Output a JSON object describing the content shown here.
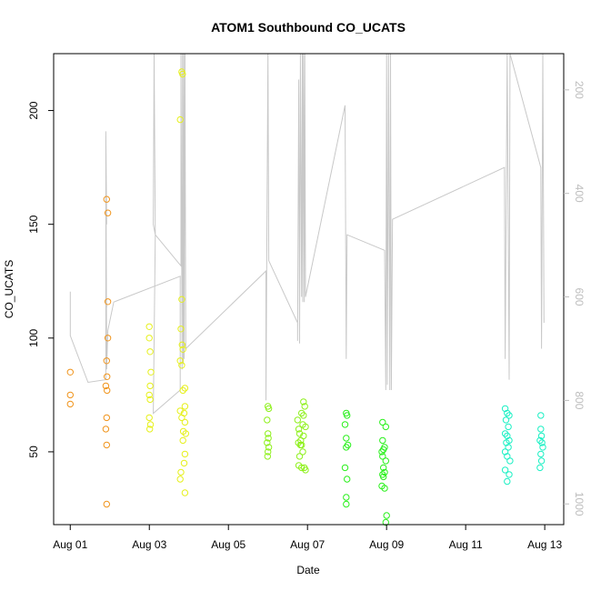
{
  "chart_data": {
    "type": "scatter",
    "title": "ATOM1 Southbound CO_UCATS",
    "xlabel": "Date",
    "ylabel": "CO_UCATS",
    "x_unit": "days since Aug 01",
    "x_ticks": [
      {
        "label": "Aug 01",
        "value": 0
      },
      {
        "label": "Aug 03",
        "value": 2
      },
      {
        "label": "Aug 05",
        "value": 4
      },
      {
        "label": "Aug 07",
        "value": 6
      },
      {
        "label": "Aug 09",
        "value": 8
      },
      {
        "label": "Aug 11",
        "value": 10
      },
      {
        "label": "Aug 13",
        "value": 12
      }
    ],
    "xlim": [
      -0.42,
      12.48
    ],
    "ylim": [
      18,
      225
    ],
    "y_ticks": [
      50,
      100,
      150,
      200
    ],
    "y2_ticks": [
      200,
      400,
      600,
      800,
      1000
    ],
    "y2lim": [
      1040,
      130
    ],
    "y2_reversed": true,
    "y2_color": "#bdbdbd",
    "grid": false,
    "legend": "none",
    "point_style": "open-circle",
    "series": [
      {
        "color": "#f0941c",
        "points": [
          [
            0.0,
            85
          ],
          [
            0.0,
            75
          ],
          [
            0.0,
            71
          ],
          [
            0.92,
            161
          ],
          [
            0.95,
            155
          ],
          [
            0.95,
            116
          ],
          [
            0.95,
            100
          ],
          [
            0.92,
            90
          ],
          [
            0.9,
            79
          ],
          [
            0.93,
            77
          ],
          [
            0.93,
            83
          ],
          [
            0.92,
            65
          ],
          [
            0.9,
            60
          ],
          [
            0.92,
            53
          ],
          [
            0.92,
            27
          ]
        ]
      },
      {
        "color": "#e6f01c",
        "points": [
          [
            2.0,
            105
          ],
          [
            2.0,
            100
          ],
          [
            2.02,
            94
          ],
          [
            2.04,
            85
          ],
          [
            2.02,
            79
          ],
          [
            2.0,
            75
          ],
          [
            2.02,
            73
          ],
          [
            2.0,
            65
          ],
          [
            2.03,
            62
          ],
          [
            2.01,
            60
          ],
          [
            2.78,
            196
          ],
          [
            2.82,
            217
          ],
          [
            2.84,
            216
          ],
          [
            2.82,
            117
          ],
          [
            2.8,
            104
          ],
          [
            2.83,
            97
          ],
          [
            2.85,
            95
          ],
          [
            2.78,
            90
          ],
          [
            2.82,
            88
          ],
          [
            2.9,
            78
          ],
          [
            2.85,
            77
          ],
          [
            2.9,
            70
          ],
          [
            2.78,
            68
          ],
          [
            2.88,
            67
          ],
          [
            2.82,
            65
          ],
          [
            2.9,
            63
          ],
          [
            2.86,
            59
          ],
          [
            2.92,
            58
          ],
          [
            2.85,
            55
          ],
          [
            2.9,
            49
          ],
          [
            2.88,
            45
          ],
          [
            2.8,
            41
          ],
          [
            2.78,
            38
          ],
          [
            2.9,
            32
          ]
        ]
      },
      {
        "color": "#8ef01c",
        "points": [
          [
            5.0,
            70
          ],
          [
            5.02,
            69
          ],
          [
            4.98,
            64
          ],
          [
            5.0,
            58
          ],
          [
            5.01,
            56
          ],
          [
            4.98,
            54
          ],
          [
            5.02,
            52
          ],
          [
            5.0,
            50
          ],
          [
            4.99,
            48
          ],
          [
            5.75,
            64
          ],
          [
            5.78,
            60
          ],
          [
            5.8,
            58
          ],
          [
            5.83,
            55
          ],
          [
            5.77,
            54
          ],
          [
            5.82,
            53
          ],
          [
            5.9,
            72
          ],
          [
            5.93,
            70
          ],
          [
            5.85,
            67
          ],
          [
            5.9,
            66
          ],
          [
            5.88,
            62
          ],
          [
            5.95,
            61
          ],
          [
            5.9,
            57
          ],
          [
            5.85,
            53
          ],
          [
            5.88,
            50
          ],
          [
            5.8,
            48
          ],
          [
            5.78,
            44
          ],
          [
            5.85,
            43
          ],
          [
            5.92,
            43
          ],
          [
            5.95,
            42
          ]
        ]
      },
      {
        "color": "#2af01c",
        "points": [
          [
            6.98,
            67
          ],
          [
            7.0,
            66
          ],
          [
            6.95,
            62
          ],
          [
            6.98,
            56
          ],
          [
            7.02,
            53
          ],
          [
            6.98,
            52
          ],
          [
            6.95,
            43
          ],
          [
            7.0,
            38
          ],
          [
            6.98,
            30
          ],
          [
            6.98,
            27
          ],
          [
            7.9,
            63
          ],
          [
            7.98,
            61
          ],
          [
            7.9,
            55
          ],
          [
            7.95,
            52
          ],
          [
            7.92,
            51
          ],
          [
            7.88,
            50
          ],
          [
            7.9,
            48
          ],
          [
            7.98,
            46
          ],
          [
            7.92,
            43
          ],
          [
            7.95,
            41
          ],
          [
            7.9,
            40
          ],
          [
            7.92,
            39
          ],
          [
            7.88,
            35
          ],
          [
            7.95,
            34
          ],
          [
            8.0,
            22
          ],
          [
            7.98,
            19
          ]
        ]
      },
      {
        "color": "#1cf0c4",
        "points": [
          [
            11.0,
            69
          ],
          [
            11.05,
            67
          ],
          [
            11.1,
            66
          ],
          [
            11.02,
            64
          ],
          [
            11.08,
            61
          ],
          [
            11.0,
            58
          ],
          [
            11.05,
            57
          ],
          [
            11.1,
            55
          ],
          [
            11.03,
            54
          ],
          [
            11.08,
            52
          ],
          [
            11.0,
            50
          ],
          [
            11.05,
            48
          ],
          [
            11.12,
            46
          ],
          [
            11.0,
            42
          ],
          [
            11.1,
            40
          ],
          [
            11.05,
            37
          ],
          [
            11.9,
            66
          ],
          [
            11.9,
            60
          ],
          [
            11.92,
            57
          ],
          [
            11.88,
            55
          ],
          [
            11.93,
            54
          ],
          [
            11.95,
            52
          ],
          [
            11.9,
            49
          ],
          [
            11.92,
            46
          ],
          [
            11.88,
            43
          ]
        ]
      }
    ],
    "pressure_track": {
      "axis": "y2",
      "color": "#c8c8c8",
      "points": [
        [
          0.0,
          590
        ],
        [
          0.0,
          675
        ],
        [
          0.45,
          765
        ],
        [
          0.9,
          760
        ],
        [
          0.9,
          280
        ],
        [
          0.92,
          460
        ],
        [
          0.9,
          285
        ],
        [
          0.92,
          720
        ],
        [
          0.9,
          600
        ],
        [
          0.92,
          700
        ],
        [
          0.9,
          560
        ],
        [
          0.92,
          620
        ],
        [
          0.9,
          580
        ],
        [
          0.92,
          700
        ],
        [
          0.9,
          710
        ],
        [
          0.92,
          740
        ],
        [
          0.95,
          665
        ],
        [
          1.1,
          610
        ],
        [
          2.78,
          560
        ],
        [
          2.78,
          780
        ],
        [
          2.1,
          825
        ],
        [
          2.15,
          480
        ],
        [
          2.12,
          130
        ],
        [
          2.1,
          460
        ],
        [
          2.15,
          480
        ],
        [
          2.8,
          540
        ],
        [
          2.8,
          130
        ],
        [
          2.83,
          740
        ],
        [
          2.84,
          130
        ],
        [
          2.86,
          730
        ],
        [
          2.87,
          130
        ],
        [
          2.88,
          720
        ],
        [
          2.9,
          130
        ],
        [
          2.92,
          700
        ],
        [
          4.95,
          550
        ],
        [
          4.95,
          800
        ],
        [
          5.0,
          130
        ],
        [
          5.02,
          530
        ],
        [
          5.75,
          650
        ],
        [
          5.75,
          685
        ],
        [
          5.78,
          180
        ],
        [
          5.8,
          690
        ],
        [
          5.82,
          130
        ],
        [
          5.85,
          600
        ],
        [
          5.87,
          130
        ],
        [
          5.88,
          610
        ],
        [
          5.9,
          130
        ],
        [
          5.92,
          610
        ],
        [
          5.93,
          130
        ],
        [
          5.95,
          600
        ],
        [
          6.95,
          230
        ],
        [
          6.98,
          720
        ],
        [
          7.0,
          480
        ],
        [
          7.95,
          510
        ],
        [
          7.98,
          780
        ],
        [
          8.0,
          130
        ],
        [
          8.02,
          770
        ],
        [
          8.05,
          130
        ],
        [
          8.08,
          780
        ],
        [
          8.1,
          130
        ],
        [
          8.12,
          780
        ],
        [
          8.15,
          450
        ],
        [
          10.98,
          350
        ],
        [
          11.0,
          720
        ],
        [
          11.05,
          130
        ],
        [
          11.1,
          760
        ],
        [
          11.12,
          130
        ],
        [
          11.9,
          350
        ],
        [
          11.92,
          700
        ],
        [
          11.95,
          130
        ],
        [
          11.98,
          650
        ]
      ]
    }
  }
}
